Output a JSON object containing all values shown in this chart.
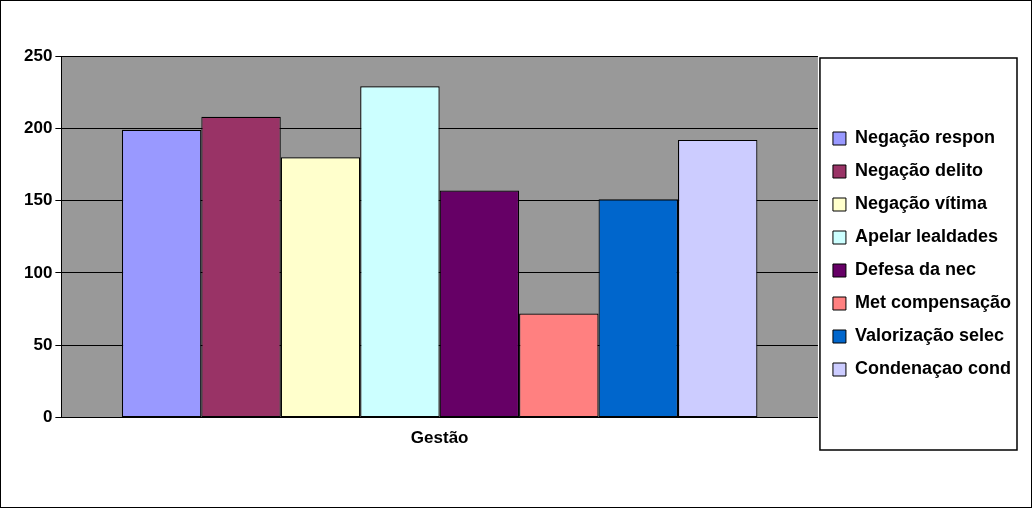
{
  "chart_data": {
    "type": "bar",
    "categories": [
      "Gestão"
    ],
    "series": [
      {
        "name": "Negação respon",
        "color": "#9999ff",
        "values": [
          199
        ]
      },
      {
        "name": "Negação delito",
        "color": "#993366",
        "values": [
          208
        ]
      },
      {
        "name": "Negação vítima",
        "color": "#ffffcc",
        "values": [
          180
        ]
      },
      {
        "name": "Apelar lealdades",
        "color": "#ccffff",
        "values": [
          229
        ]
      },
      {
        "name": "Defesa da nec",
        "color": "#660066",
        "values": [
          157
        ]
      },
      {
        "name": "Met compensação",
        "color": "#ff8080",
        "values": [
          72
        ]
      },
      {
        "name": "Valorização selec",
        "color": "#0066cc",
        "values": [
          151
        ]
      },
      {
        "name": "Condenaçao cond",
        "color": "#ccccff",
        "values": [
          192
        ]
      }
    ],
    "ylim": [
      0,
      250
    ],
    "yticks": [
      0,
      50,
      100,
      150,
      200,
      250
    ],
    "grid": "y",
    "legend": "right"
  }
}
